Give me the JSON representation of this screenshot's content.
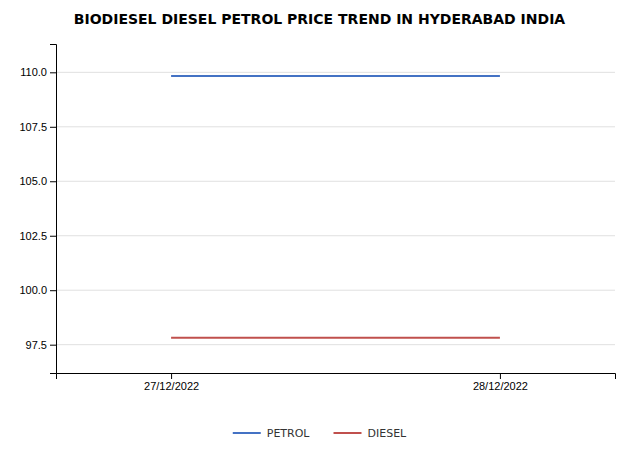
{
  "chart_data": {
    "type": "line",
    "title": "BIODIESEL DIESEL PETROL PRICE TREND IN HYDERABAD INDIA",
    "categories": [
      "27/12/2022",
      "28/12/2022"
    ],
    "series": [
      {
        "name": "PETROL",
        "color": "#4472C4",
        "values": [
          109.83,
          109.83
        ]
      },
      {
        "name": "DIESEL",
        "color": "#C0504D",
        "values": [
          97.82,
          97.82
        ]
      }
    ],
    "ylim": [
      96.2,
      111.3
    ],
    "yticks": [
      97.5,
      {
        "value": 100.0,
        "label": "100.0"
      },
      102.5,
      {
        "value": 105.0,
        "label": "105.0"
      },
      107.5,
      {
        "value": 110.0,
        "label": "110.0"
      }
    ],
    "grid": true,
    "legend": "bottom"
  }
}
